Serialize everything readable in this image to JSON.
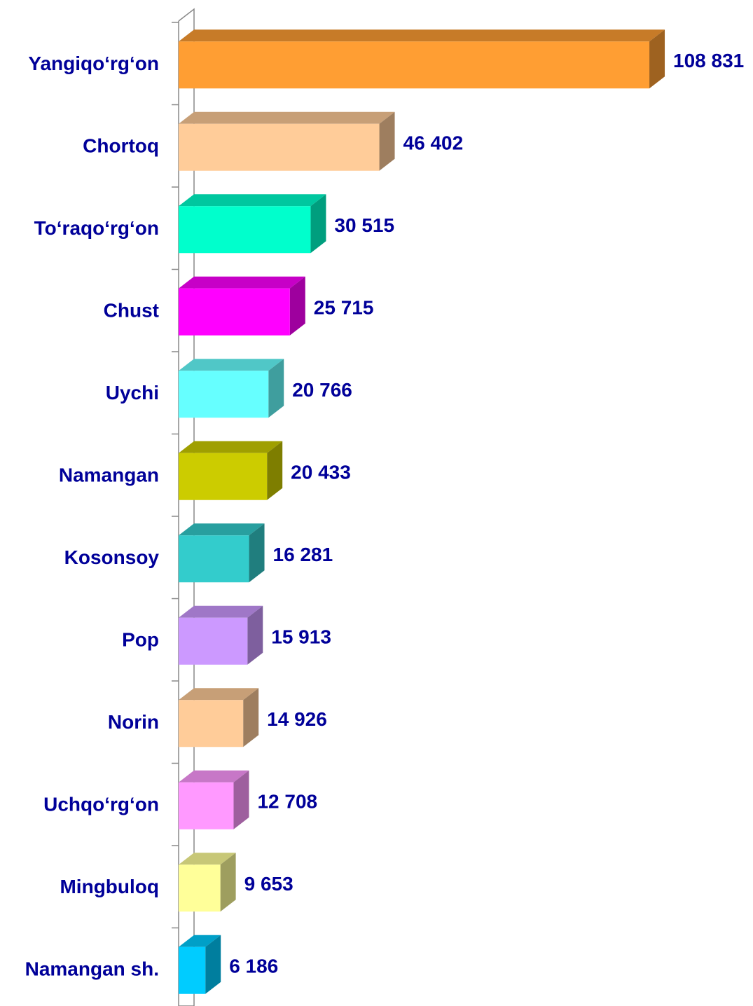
{
  "chart_data": {
    "type": "hbar3d",
    "categories": [
      "Yangiqo‘rg‘on",
      "Chortoq",
      "To‘raqo‘rg‘on",
      "Chust",
      "Uychi",
      "Namangan",
      "Kosonsoy",
      "Pop",
      "Norin",
      "Uchqo‘rg‘on",
      "Mingbuloq",
      "Namangan sh."
    ],
    "values": [
      108831,
      46402,
      30515,
      25715,
      20766,
      20433,
      16281,
      15913,
      14926,
      12708,
      9653,
      6186
    ],
    "value_labels": [
      "108 831",
      "46 402",
      "30 515",
      "25 715",
      "20 766",
      "20 433",
      "16 281",
      "15 913",
      "14 926",
      "12 708",
      "9 653",
      "6 186"
    ],
    "colors": [
      "#ff9e33",
      "#ffcc99",
      "#00ffcc",
      "#ff00ff",
      "#66ffff",
      "#cccc00",
      "#33cccc",
      "#cc99ff",
      "#ffcc99",
      "#ff99ff",
      "#ffff99",
      "#00ccff"
    ],
    "xlim": [
      0,
      120000
    ]
  }
}
